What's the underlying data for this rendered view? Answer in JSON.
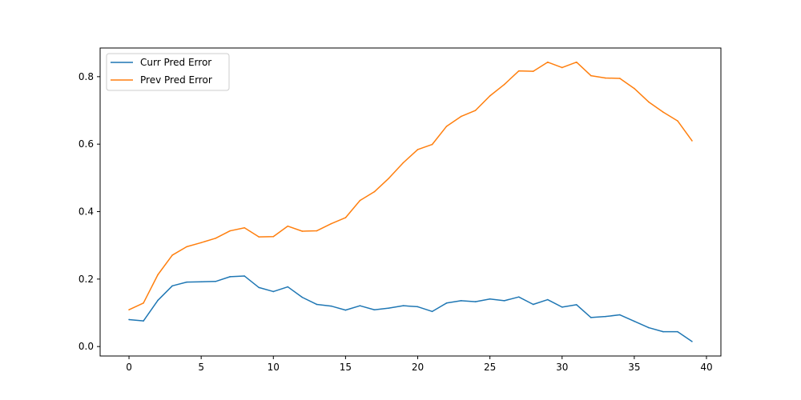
{
  "chart_data": {
    "type": "line",
    "title": "",
    "xlabel": "",
    "ylabel": "",
    "xlim": [
      -2,
      41
    ],
    "ylim": [
      -0.028,
      0.885
    ],
    "x_ticks": [
      0,
      5,
      10,
      15,
      20,
      25,
      30,
      35,
      40
    ],
    "x_tick_labels": [
      "0",
      "5",
      "10",
      "15",
      "20",
      "25",
      "30",
      "35",
      "40"
    ],
    "y_ticks": [
      0.0,
      0.2,
      0.4,
      0.6,
      0.8
    ],
    "y_tick_labels": [
      "0.0",
      "0.2",
      "0.4",
      "0.6",
      "0.8"
    ],
    "grid": false,
    "legend_position": "upper-left",
    "x": [
      0,
      1,
      2,
      3,
      4,
      5,
      6,
      7,
      8,
      9,
      10,
      11,
      12,
      13,
      14,
      15,
      16,
      17,
      18,
      19,
      20,
      21,
      22,
      23,
      24,
      25,
      26,
      27,
      28,
      29,
      30,
      31,
      32,
      33,
      34,
      35,
      36,
      37,
      38,
      39
    ],
    "series": [
      {
        "name": "Curr Pred Error",
        "color": "#1f77b4",
        "values": [
          0.08,
          0.076,
          0.137,
          0.18,
          0.191,
          0.192,
          0.193,
          0.207,
          0.209,
          0.175,
          0.163,
          0.177,
          0.146,
          0.125,
          0.12,
          0.108,
          0.121,
          0.109,
          0.114,
          0.121,
          0.118,
          0.104,
          0.129,
          0.136,
          0.133,
          0.141,
          0.136,
          0.147,
          0.125,
          0.139,
          0.117,
          0.124,
          0.086,
          0.089,
          0.094,
          0.075,
          0.056,
          0.044,
          0.044,
          0.015
        ]
      },
      {
        "name": "Prev Pred Error",
        "color": "#ff7f0e",
        "values": [
          0.109,
          0.129,
          0.213,
          0.271,
          0.296,
          0.308,
          0.321,
          0.343,
          0.352,
          0.325,
          0.326,
          0.357,
          0.342,
          0.343,
          0.364,
          0.382,
          0.433,
          0.459,
          0.499,
          0.545,
          0.584,
          0.599,
          0.653,
          0.682,
          0.7,
          0.743,
          0.777,
          0.817,
          0.816,
          0.843,
          0.827,
          0.843,
          0.803,
          0.796,
          0.795,
          0.765,
          0.725,
          0.695,
          0.669,
          0.61
        ]
      }
    ]
  }
}
